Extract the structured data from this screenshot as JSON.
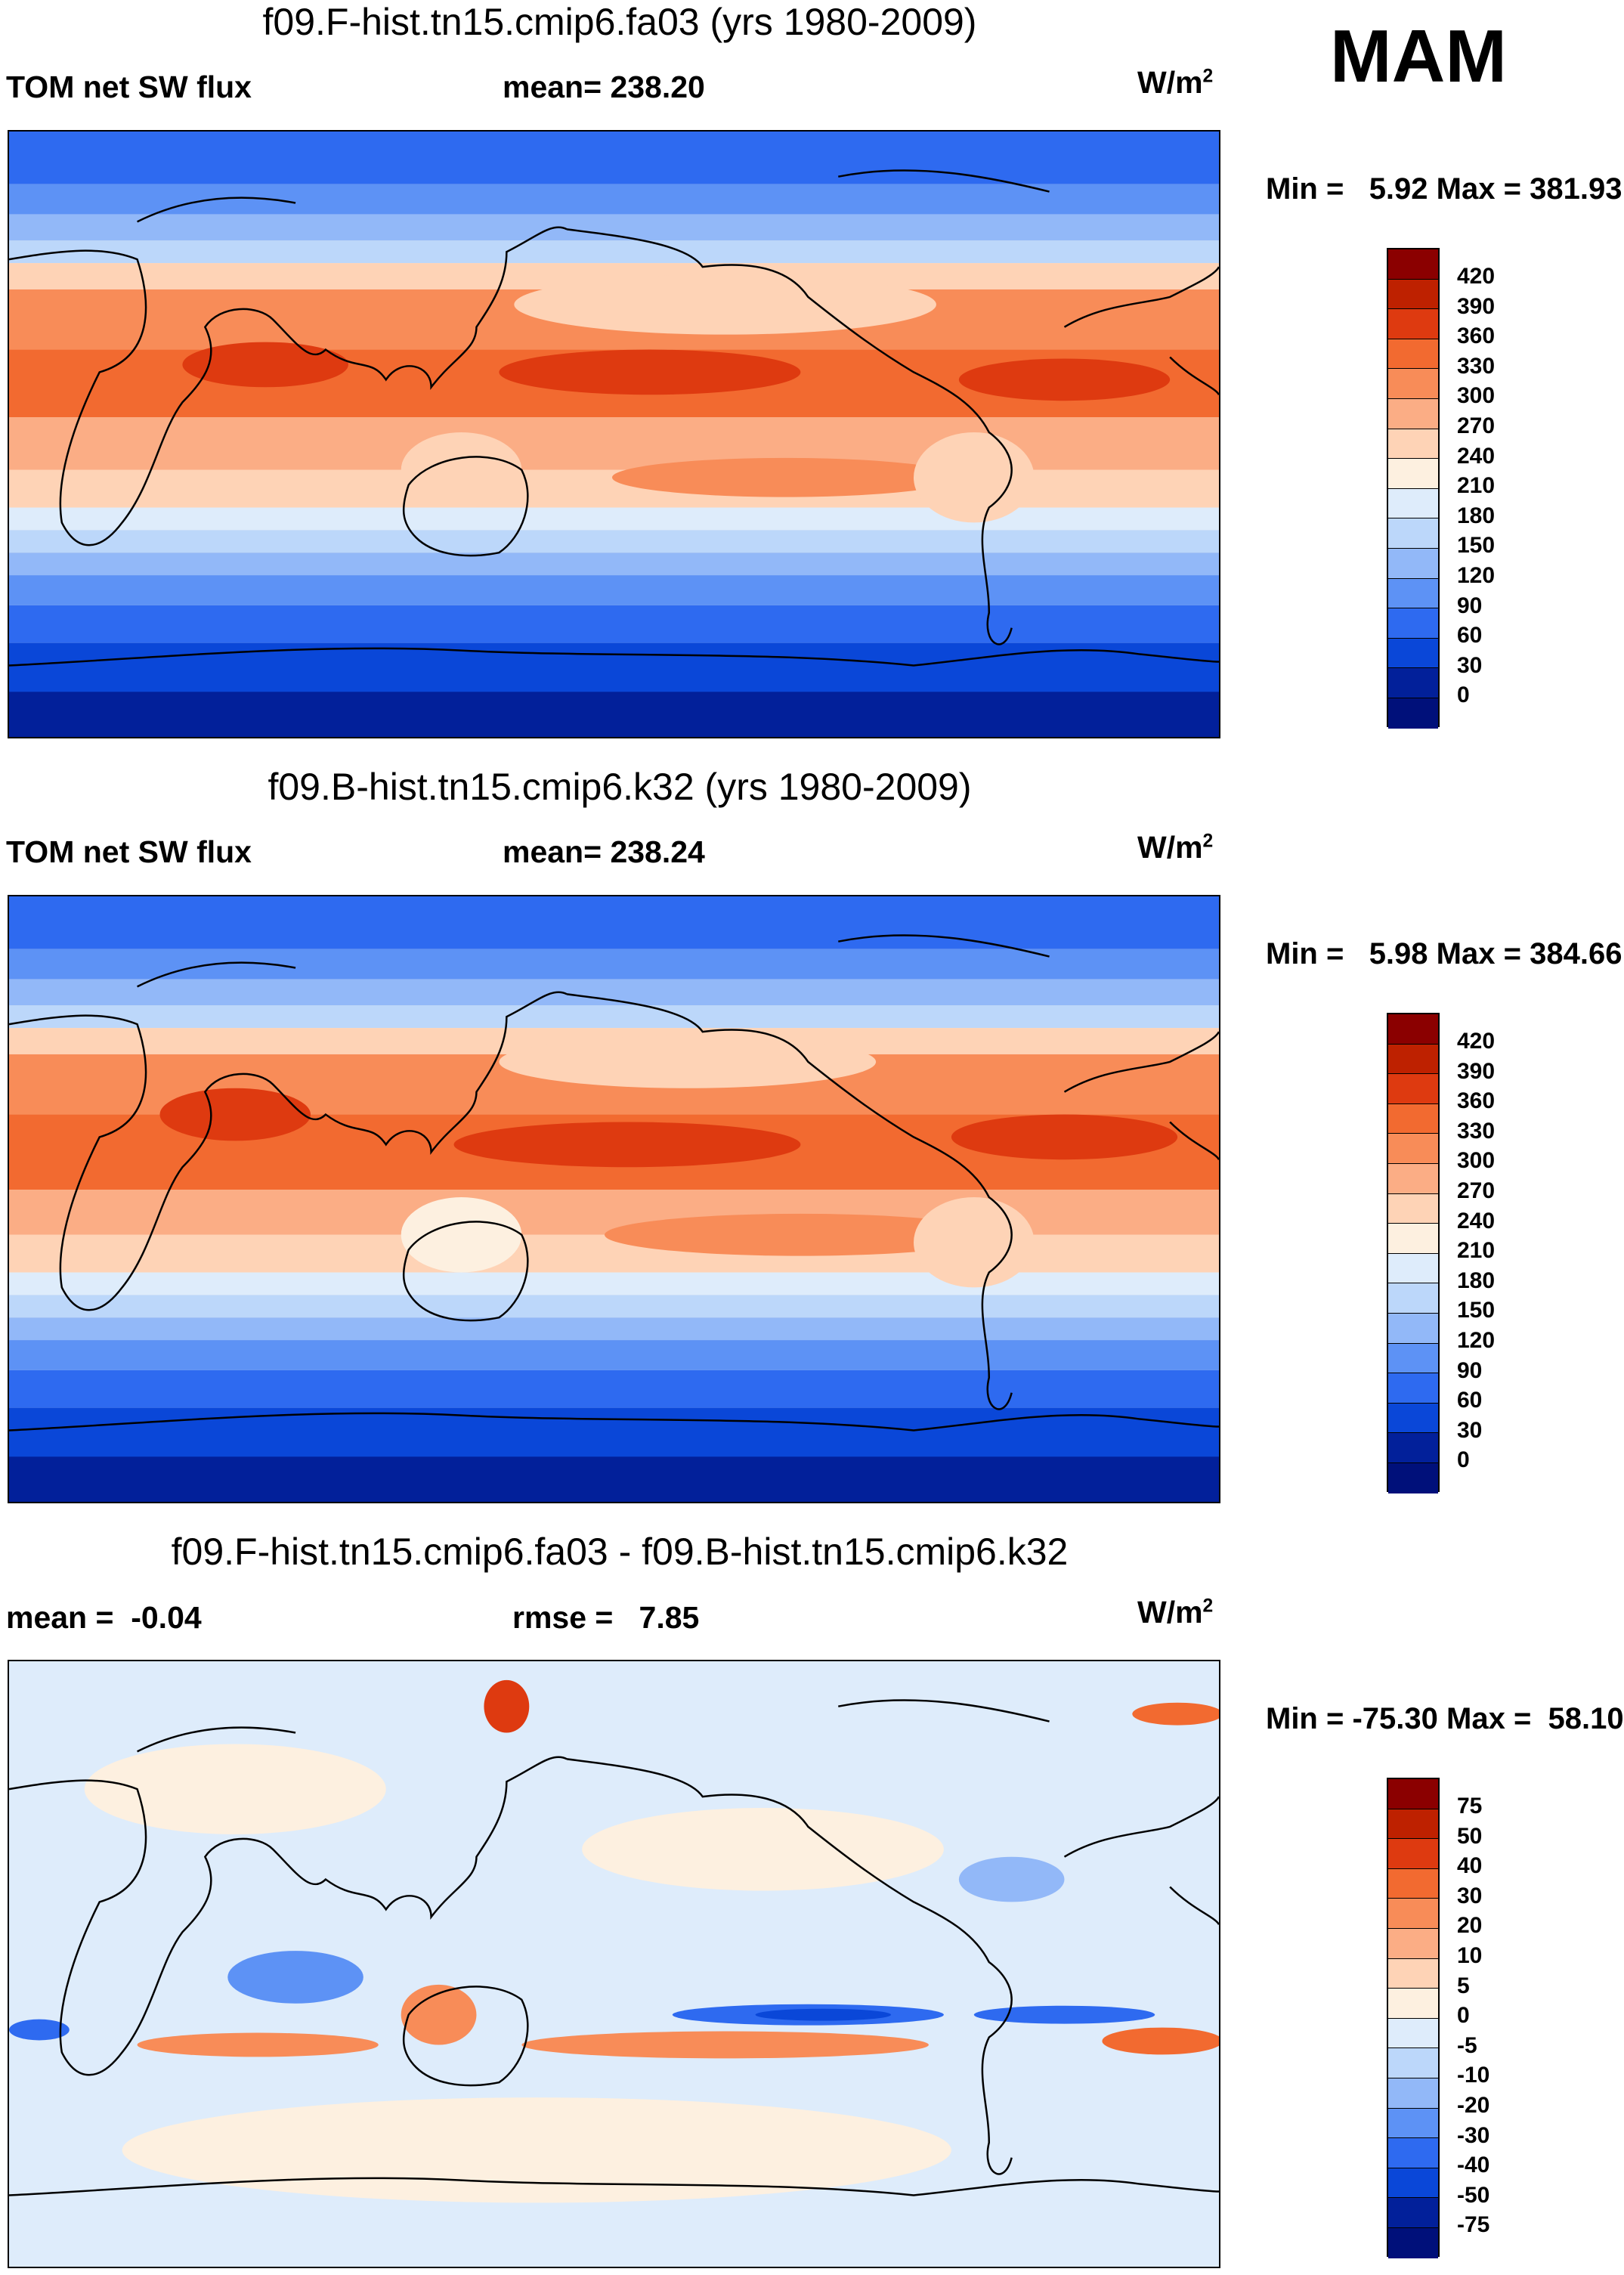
{
  "season": "MAM",
  "panels": [
    {
      "title": "f09.F-hist.tn15.cmip6.fa03 (yrs 1980-2009)",
      "left_label": "TOM net SW flux",
      "center_label": "mean= 238.20",
      "units": "W/m",
      "units_exp": "2",
      "min_label": "Min =",
      "min_value": "5.92",
      "max_label": "Max =",
      "max_value": "381.93",
      "colorbar": {
        "labels": [
          "420",
          "390",
          "360",
          "330",
          "300",
          "270",
          "240",
          "210",
          "180",
          "150",
          "120",
          "90",
          "60",
          "30",
          "0"
        ],
        "colors": [
          "#8b0000",
          "#be2100",
          "#de3a10",
          "#f26a30",
          "#f88c58",
          "#fbad85",
          "#fed3b6",
          "#fdf0e0",
          "#deecfb",
          "#bcd7fa",
          "#92b8f8",
          "#5d92f5",
          "#2e6af0",
          "#0a47d8",
          "#02209a",
          "#00107a"
        ]
      }
    },
    {
      "title": "f09.B-hist.tn15.cmip6.k32 (yrs 1980-2009)",
      "left_label": "TOM net SW flux",
      "center_label": "mean= 238.24",
      "units": "W/m",
      "units_exp": "2",
      "min_label": "Min =",
      "min_value": "5.98",
      "max_label": "Max =",
      "max_value": "384.66",
      "colorbar": {
        "labels": [
          "420",
          "390",
          "360",
          "330",
          "300",
          "270",
          "240",
          "210",
          "180",
          "150",
          "120",
          "90",
          "60",
          "30",
          "0"
        ],
        "colors": [
          "#8b0000",
          "#be2100",
          "#de3a10",
          "#f26a30",
          "#f88c58",
          "#fbad85",
          "#fed3b6",
          "#fdf0e0",
          "#deecfb",
          "#bcd7fa",
          "#92b8f8",
          "#5d92f5",
          "#2e6af0",
          "#0a47d8",
          "#02209a",
          "#00107a"
        ]
      }
    },
    {
      "title": "f09.F-hist.tn15.cmip6.fa03 - f09.B-hist.tn15.cmip6.k32",
      "left_label": "mean =  -0.04",
      "center_label": "rmse =   7.85",
      "units": "W/m",
      "units_exp": "2",
      "min_label": "Min =",
      "min_value": "-75.30",
      "max_label": "Max =",
      "max_value": "58.10",
      "colorbar": {
        "labels": [
          "75",
          "50",
          "40",
          "30",
          "20",
          "10",
          "5",
          "0",
          "-5",
          "-10",
          "-20",
          "-30",
          "-40",
          "-50",
          "-75"
        ],
        "colors": [
          "#8b0000",
          "#be2100",
          "#de3a10",
          "#f26a30",
          "#f88c58",
          "#fbad85",
          "#fed3b6",
          "#fdf0e0",
          "#deecfb",
          "#bcd7fa",
          "#92b8f8",
          "#5d92f5",
          "#2e6af0",
          "#0a47d8",
          "#02209a",
          "#00107a"
        ]
      }
    }
  ]
}
